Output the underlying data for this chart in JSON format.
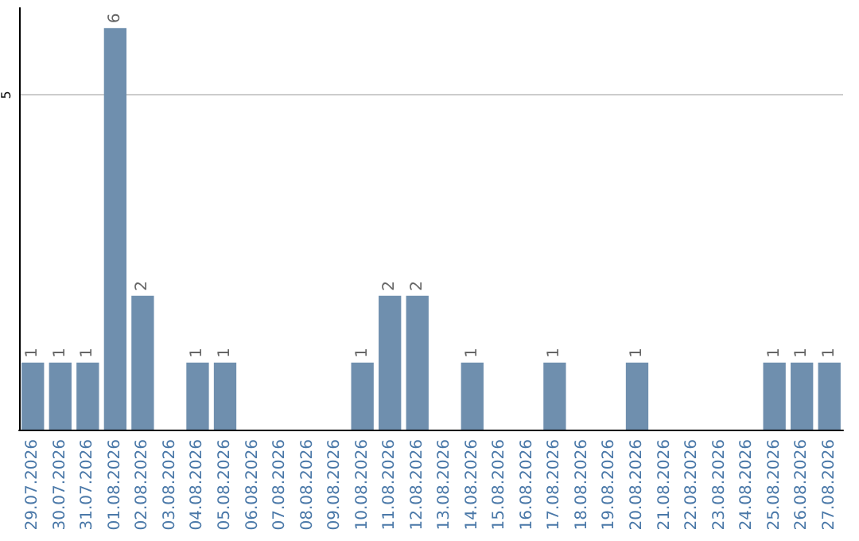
{
  "chart_data": {
    "type": "bar",
    "categories": [
      "29.07.2026",
      "30.07.2026",
      "31.07.2026",
      "01.08.2026",
      "02.08.2026",
      "03.08.2026",
      "04.08.2026",
      "05.08.2026",
      "06.08.2026",
      "07.08.2026",
      "08.08.2026",
      "09.08.2026",
      "10.08.2026",
      "11.08.2026",
      "12.08.2026",
      "13.08.2026",
      "14.08.2026",
      "15.08.2026",
      "16.08.2026",
      "17.08.2026",
      "18.08.2026",
      "19.08.2026",
      "20.08.2026",
      "21.08.2026",
      "22.08.2026",
      "23.08.2026",
      "24.08.2026",
      "25.08.2026",
      "26.08.2026",
      "27.08.2026"
    ],
    "values": [
      1,
      1,
      1,
      6,
      2,
      0,
      1,
      1,
      0,
      0,
      0,
      0,
      1,
      2,
      2,
      0,
      1,
      0,
      0,
      1,
      0,
      0,
      1,
      0,
      0,
      0,
      0,
      1,
      1,
      1
    ],
    "value_labels": [
      "1",
      "1",
      "1",
      "6",
      "2",
      null,
      "1",
      "1",
      null,
      null,
      null,
      null,
      "1",
      "2",
      "2",
      null,
      "1",
      null,
      null,
      "1",
      null,
      null,
      "1",
      null,
      null,
      null,
      null,
      "1",
      "1",
      "1"
    ],
    "color": "#6f8fae",
    "ylim": [
      0,
      6.3
    ],
    "yticks": [
      5
    ],
    "grid": "y"
  }
}
